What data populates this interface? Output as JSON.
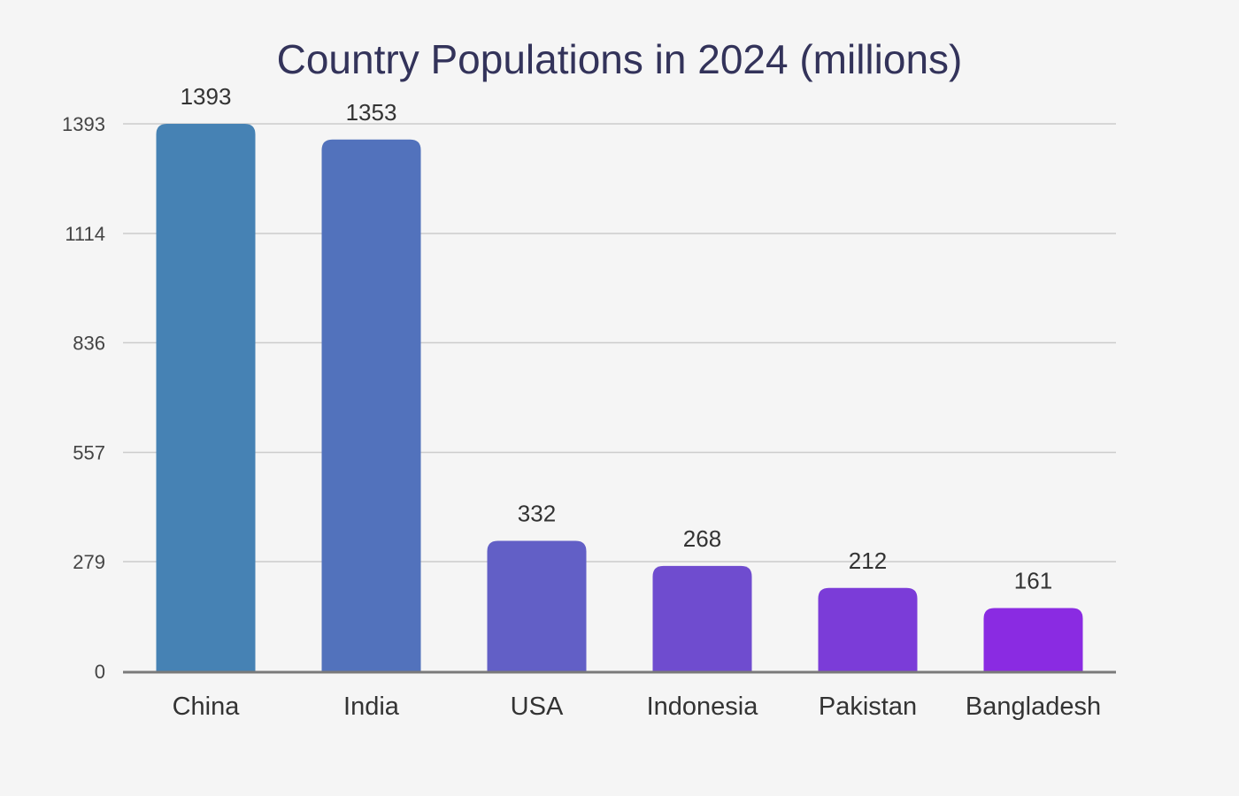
{
  "chart_data": {
    "type": "bar",
    "title": "Country Populations in 2024 (millions)",
    "categories": [
      "China",
      "India",
      "USA",
      "Indonesia",
      "Pakistan",
      "Bangladesh"
    ],
    "values": [
      1393,
      1353,
      332,
      268,
      212,
      161
    ],
    "data_labels": [
      "1393",
      "1353",
      "332",
      "268",
      "212",
      "161"
    ],
    "y_ticks": [
      0,
      279,
      557,
      836,
      1114,
      1393
    ],
    "y_tick_labels": [
      "0",
      "279",
      "557",
      "836",
      "1114",
      "1393"
    ],
    "ylim": [
      0,
      1393
    ],
    "xlabel": "",
    "ylabel": "",
    "grid": true,
    "legend": "none",
    "colors": [
      "#4682b4",
      "#5272bc",
      "#625fc6",
      "#6f4ccf",
      "#7b3cd8",
      "#8a2be2"
    ]
  }
}
